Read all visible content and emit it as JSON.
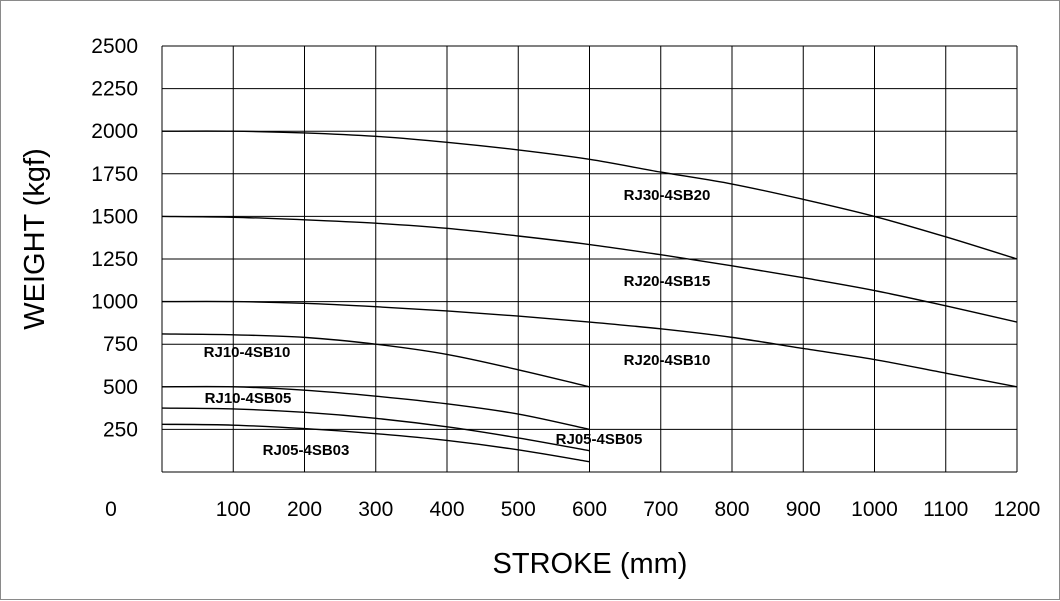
{
  "chart_data": {
    "type": "line",
    "title": "",
    "xlabel": "STROKE (mm)",
    "ylabel": "WEIGHT (kgf)",
    "xlim": [
      0,
      1200
    ],
    "ylim": [
      0,
      2500
    ],
    "x_ticks": [
      "0",
      "100",
      "200",
      "300",
      "400",
      "500",
      "600",
      "700",
      "800",
      "900",
      "1000",
      "1100",
      "1200"
    ],
    "y_ticks": [
      "250",
      "500",
      "750",
      "1000",
      "1250",
      "1500",
      "1750",
      "2000",
      "2250",
      "2500"
    ],
    "grid": true,
    "series": [
      {
        "name": "RJ30-4SB20",
        "x": [
          0,
          100,
          200,
          300,
          400,
          500,
          600,
          700,
          800,
          900,
          1000,
          1100,
          1200
        ],
        "values": [
          2000,
          2000,
          1990,
          1970,
          1935,
          1890,
          1835,
          1760,
          1690,
          1600,
          1500,
          1380,
          1250
        ]
      },
      {
        "name": "RJ20-4SB15",
        "x": [
          0,
          100,
          200,
          300,
          400,
          500,
          600,
          700,
          800,
          900,
          1000,
          1100,
          1200
        ],
        "values": [
          1500,
          1495,
          1480,
          1460,
          1430,
          1385,
          1335,
          1275,
          1210,
          1140,
          1065,
          975,
          880
        ]
      },
      {
        "name": "RJ20-4SB10",
        "x": [
          0,
          100,
          200,
          300,
          400,
          500,
          600,
          700,
          800,
          900,
          1000,
          1100,
          1200
        ],
        "values": [
          1000,
          1000,
          990,
          970,
          945,
          915,
          880,
          840,
          790,
          725,
          660,
          580,
          500
        ]
      },
      {
        "name": "RJ10-4SB10",
        "x": [
          0,
          100,
          200,
          300,
          400,
          500,
          600
        ],
        "values": [
          810,
          805,
          790,
          750,
          690,
          600,
          500
        ]
      },
      {
        "name": "RJ10-4SB05",
        "x": [
          0,
          100,
          200,
          300,
          400,
          500,
          600
        ],
        "values": [
          500,
          500,
          480,
          445,
          400,
          340,
          250
        ]
      },
      {
        "name": "RJ05-4SB05",
        "x": [
          0,
          100,
          200,
          300,
          400,
          500,
          600
        ],
        "values": [
          375,
          370,
          350,
          315,
          265,
          200,
          125
        ]
      },
      {
        "name": "RJ05-4SB03",
        "x": [
          0,
          100,
          200,
          300,
          400,
          500,
          600
        ],
        "values": [
          280,
          275,
          255,
          225,
          185,
          130,
          60
        ]
      }
    ]
  }
}
